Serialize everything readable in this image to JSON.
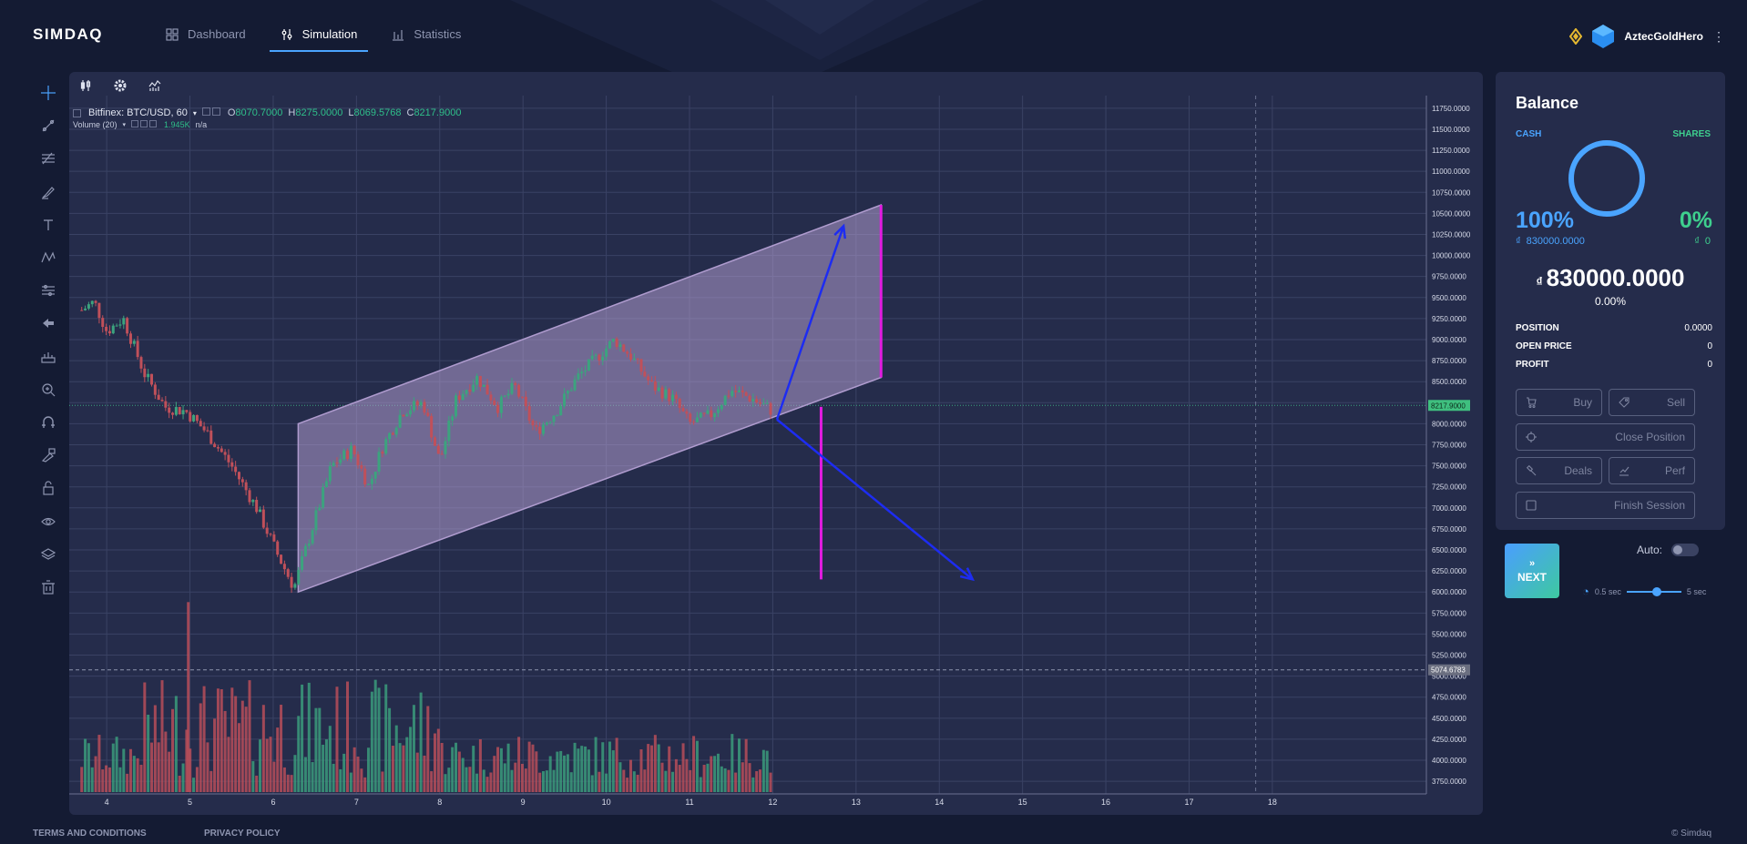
{
  "header": {
    "logo": "SIMDAQ",
    "nav": [
      {
        "label": "Dashboard",
        "icon": "grid-icon",
        "active": false
      },
      {
        "label": "Simulation",
        "icon": "sliders-icon",
        "active": true
      },
      {
        "label": "Statistics",
        "icon": "bar-chart-icon",
        "active": false
      }
    ],
    "user": {
      "name": "AztecGoldHero"
    }
  },
  "toolbar": {
    "tools": [
      "crosshair-icon",
      "trend-line-icon",
      "fib-icon",
      "brush-icon",
      "text-icon",
      "pattern-icon",
      "measure-icon",
      "back-arrow-icon",
      "ruler-icon",
      "zoom-in-icon",
      "magnet-icon",
      "lock-drawing-icon",
      "unlock-icon",
      "eye-icon",
      "layers-icon",
      "trash-icon"
    ]
  },
  "chart": {
    "symbol": "Bitfinex: BTC/USD, 60",
    "ohlc": {
      "o_label": "O",
      "o": "8070.7000",
      "h_label": "H",
      "h": "8275.0000",
      "l_label": "L",
      "l": "8069.5768",
      "c_label": "C",
      "c": "8217.9000"
    },
    "volume_label": "Volume (20)",
    "volume_value": "1.945K",
    "volume_na": "n/a",
    "current_price_tag": "8217.9000",
    "crosshair_price_tag": "5074.6783"
  },
  "chart_data": {
    "type": "candlestick",
    "x_ticks": [
      "4",
      "5",
      "6",
      "7",
      "8",
      "9",
      "10",
      "11",
      "12",
      "13",
      "14",
      "15",
      "16",
      "17",
      "18"
    ],
    "y_ticks": [
      "11750.0000",
      "11500.0000",
      "11250.0000",
      "11000.0000",
      "10750.0000",
      "10500.0000",
      "10250.0000",
      "10000.0000",
      "9750.0000",
      "9500.0000",
      "9250.0000",
      "9000.0000",
      "8750.0000",
      "8500.0000",
      "8250.0000",
      "8000.0000",
      "7750.0000",
      "7500.0000",
      "7250.0000",
      "7000.0000",
      "6750.0000",
      "6500.0000",
      "6250.0000",
      "6000.0000",
      "5750.0000",
      "5500.0000",
      "5250.0000",
      "5000.0000",
      "4750.0000",
      "4500.0000",
      "4250.0000",
      "4000.0000",
      "3750.0000"
    ],
    "ylim": [
      3600,
      11900
    ],
    "xlim": [
      3.55,
      19.85
    ],
    "price_path": [
      [
        3.7,
        9350
      ],
      [
        3.85,
        9450
      ],
      [
        4.0,
        9100
      ],
      [
        4.2,
        9250
      ],
      [
        4.45,
        8600
      ],
      [
        4.7,
        8200
      ],
      [
        4.95,
        8150
      ],
      [
        5.2,
        7900
      ],
      [
        5.5,
        7500
      ],
      [
        5.8,
        7000
      ],
      [
        6.05,
        6450
      ],
      [
        6.25,
        6050
      ],
      [
        6.45,
        6700
      ],
      [
        6.7,
        7500
      ],
      [
        6.95,
        7700
      ],
      [
        7.15,
        7250
      ],
      [
        7.3,
        7700
      ],
      [
        7.55,
        8150
      ],
      [
        7.8,
        8250
      ],
      [
        8.0,
        7550
      ],
      [
        8.2,
        8300
      ],
      [
        8.45,
        8550
      ],
      [
        8.7,
        8200
      ],
      [
        8.9,
        8450
      ],
      [
        9.15,
        7900
      ],
      [
        9.4,
        8150
      ],
      [
        9.65,
        8550
      ],
      [
        9.9,
        8800
      ],
      [
        10.1,
        9000
      ],
      [
        10.3,
        8800
      ],
      [
        10.55,
        8450
      ],
      [
        10.8,
        8300
      ],
      [
        11.0,
        8000
      ],
      [
        11.25,
        8100
      ],
      [
        11.5,
        8400
      ],
      [
        11.75,
        8300
      ],
      [
        12.0,
        8150
      ]
    ],
    "volume_scale_max": 1.0,
    "drawings": {
      "channel": [
        [
          6.3,
          8000
        ],
        [
          13.3,
          10600
        ],
        [
          13.3,
          8550
        ],
        [
          6.3,
          6000
        ]
      ],
      "vertical_lines": [
        {
          "x": 13.3,
          "y1": 8550,
          "y2": 10600
        },
        {
          "x": 12.58,
          "y1": 6150,
          "y2": 8200
        }
      ],
      "arrows": [
        {
          "from": [
            12.05,
            8050
          ],
          "to": [
            12.85,
            10350
          ]
        },
        {
          "from": [
            12.05,
            8050
          ],
          "to": [
            14.4,
            6150
          ]
        }
      ],
      "dashed_vertical_x": 17.8
    },
    "grid": true
  },
  "balance": {
    "title": "Balance",
    "cash_label": "CASH",
    "shares_label": "SHARES",
    "cash_pct": "100%",
    "shares_pct": "0%",
    "cash_amount": "830000.0000",
    "shares_amount": "0",
    "total": "830000.0000",
    "total_pct": "0.00%",
    "stats": [
      {
        "name": "POSITION",
        "value": "0.0000"
      },
      {
        "name": "OPEN PRICE",
        "value": "0"
      },
      {
        "name": "PROFIT",
        "value": "0"
      }
    ],
    "buttons": {
      "buy": "Buy",
      "sell": "Sell",
      "close": "Close Position",
      "deals": "Deals",
      "perf": "Perf",
      "finish": "Finish Session"
    }
  },
  "controls": {
    "next_label": "NEXT",
    "auto_label": "Auto:",
    "speed_min": "0.5 sec",
    "speed_max": "5 sec",
    "speed_value": 0.5
  },
  "footer": {
    "terms": "TERMS AND CONDITIONS",
    "privacy": "PRIVACY POLICY",
    "copyright": "© Simdaq"
  },
  "colors": {
    "accent": "#4aa4ff",
    "green": "#3ecf8e",
    "candle_up": "#3ca37e",
    "candle_down": "#c0505a",
    "channel": "#b09ccf",
    "magenta": "#e11ce0",
    "arrow": "#1d2cf2"
  }
}
